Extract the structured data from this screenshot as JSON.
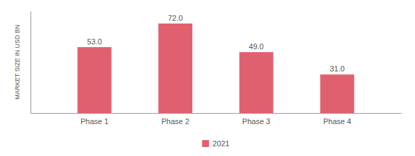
{
  "chart_data": {
    "type": "bar",
    "y_label": "MARKET SIZE IN USD BN",
    "categories": [
      "Phase 1",
      "Phase 2",
      "Phase 3",
      "Phase 4"
    ],
    "series": [
      {
        "name": "2021",
        "color": "#e06070",
        "values": [
          53.0,
          72.0,
          49.0,
          31.0
        ],
        "value_labels": [
          "53.0",
          "72.0",
          "49.0",
          "31.0"
        ]
      }
    ],
    "ylim": [
      0,
      82
    ],
    "data_labels": true,
    "tick_labels": "x",
    "legend": "bottom",
    "grid": false
  }
}
